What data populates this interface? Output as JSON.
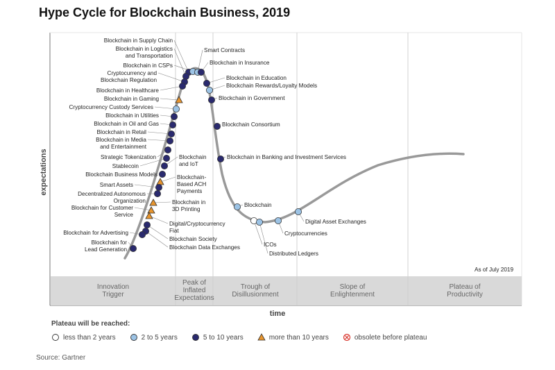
{
  "chart_data": {
    "type": "scatter",
    "title": "Hype Cycle for Blockchain Business, 2019",
    "xlabel": "time",
    "ylabel": "expectations",
    "asof": "As of July 2019",
    "phases": [
      "Innovation Trigger",
      "Peak of Inflated Expectations",
      "Trough of Disillusionment",
      "Slope of Enlightenment",
      "Plateau of Productivity"
    ],
    "legend_title": "Plateau will be reached:",
    "legend": [
      {
        "key": "lt2",
        "label": "less than 2 years",
        "color": "#ffffff"
      },
      {
        "key": "2to5",
        "label": "2 to 5 years",
        "color": "#9cc3e5"
      },
      {
        "key": "5to10",
        "label": "5 to 10 years",
        "color": "#2a2a6e"
      },
      {
        "key": "gt10",
        "label": "more than 10 years",
        "color": "#e8952e"
      },
      {
        "key": "obs",
        "label": "obsolete before plateau",
        "color": "#d9342b"
      }
    ],
    "source": "Source: Gartner",
    "points": [
      {
        "name": "Blockchain in Supply Chain",
        "cat": "5to10"
      },
      {
        "name": "Blockchain in Logistics and Transportation",
        "cat": "5to10"
      },
      {
        "name": "Blockchain in CSPs",
        "cat": "2to5"
      },
      {
        "name": "Smart Contracts",
        "cat": "2to5"
      },
      {
        "name": "Blockchain in Insurance",
        "cat": "5to10"
      },
      {
        "name": "Cryptocurrency and Blockchain Regulation",
        "cat": "5to10"
      },
      {
        "name": "Blockchain in Education",
        "cat": "5to10"
      },
      {
        "name": "Blockchain Rewards/Loyalty Models",
        "cat": "2to5"
      },
      {
        "name": "Blockchain in Healthcare",
        "cat": "5to10"
      },
      {
        "name": "Blockchain in Government",
        "cat": "5to10"
      },
      {
        "name": "Blockchain in Gaming",
        "cat": "gt10"
      },
      {
        "name": "Cryptocurrency Custody Services",
        "cat": "2to5"
      },
      {
        "name": "Blockchain in Utilities",
        "cat": "5to10"
      },
      {
        "name": "Blockchain in Oil and Gas",
        "cat": "5to10"
      },
      {
        "name": "Blockchain Consortium",
        "cat": "5to10"
      },
      {
        "name": "Blockchain in Retail",
        "cat": "5to10"
      },
      {
        "name": "Blockchain in Media and Entertainment",
        "cat": "5to10"
      },
      {
        "name": "Strategic Tokenization",
        "cat": "5to10"
      },
      {
        "name": "Stablecoin",
        "cat": "5to10"
      },
      {
        "name": "Blockchain and IoT",
        "cat": "5to10"
      },
      {
        "name": "Blockchain in Banking and Investment Services",
        "cat": "5to10"
      },
      {
        "name": "Blockchain Business Models",
        "cat": "5to10"
      },
      {
        "name": "Blockchain-Based ACH Payments",
        "cat": "gt10"
      },
      {
        "name": "Smart Assets",
        "cat": "5to10"
      },
      {
        "name": "Decentralized Autonomous Organization",
        "cat": "5to10"
      },
      {
        "name": "Blockchain in 3D Printing",
        "cat": "gt10"
      },
      {
        "name": "Blockchain for Customer Service",
        "cat": "gt10"
      },
      {
        "name": "Digital/Cryptocurrency Fiat",
        "cat": "gt10"
      },
      {
        "name": "Blockchain Society",
        "cat": "5to10"
      },
      {
        "name": "Blockchain Data Exchanges",
        "cat": "5to10"
      },
      {
        "name": "Blockchain for Advertising",
        "cat": "5to10"
      },
      {
        "name": "Blockchain for Lead Generation",
        "cat": "5to10"
      },
      {
        "name": "Blockchain",
        "cat": "2to5"
      },
      {
        "name": "ICOs",
        "cat": "lt2"
      },
      {
        "name": "Distributed Ledgers",
        "cat": "2to5"
      },
      {
        "name": "Cryptocurrencies",
        "cat": "2to5"
      },
      {
        "name": "Digital Asset Exchanges",
        "cat": "2to5"
      }
    ]
  }
}
